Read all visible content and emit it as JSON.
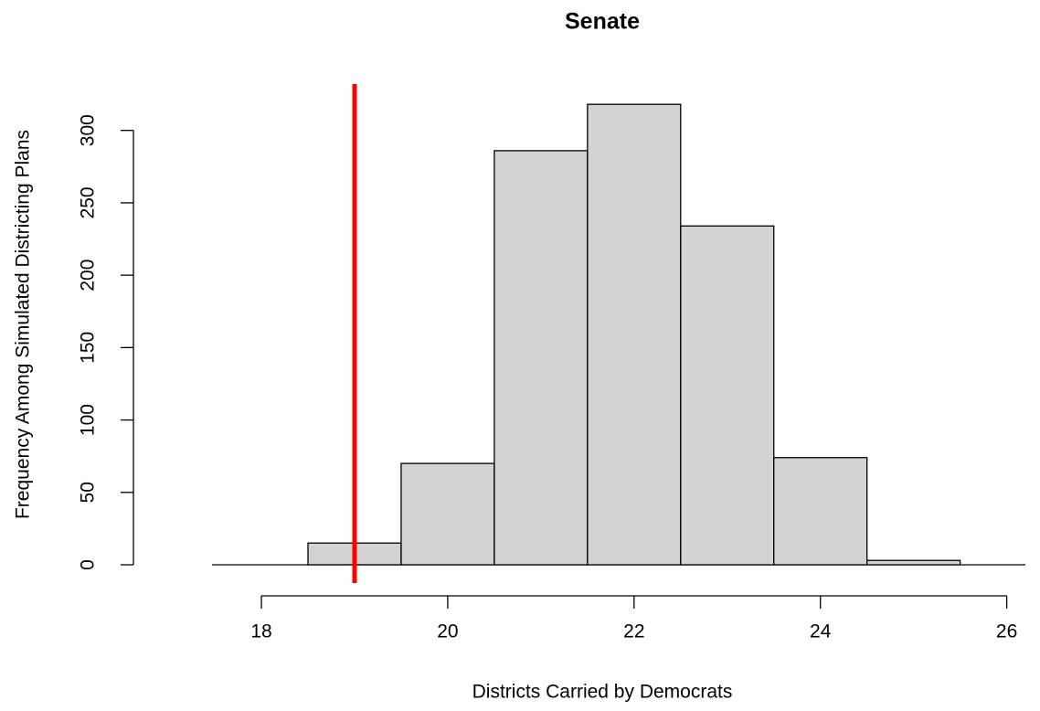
{
  "chart_data": {
    "type": "histogram",
    "title": "Senate",
    "xlabel": "Districts Carried by Democrats",
    "ylabel": "Frequency Among Simulated Districting Plans",
    "bins": [
      18.5,
      19.5,
      20.5,
      21.5,
      22.5,
      23.5,
      24.5,
      25.5
    ],
    "values": [
      15,
      70,
      286,
      318,
      234,
      74,
      3
    ],
    "color": "#d3d3d3",
    "xlim": [
      17.47,
      26.2
    ],
    "xticks": [
      18,
      20,
      22,
      24,
      26
    ],
    "ylim": [
      0,
      332
    ],
    "yticks": [
      0,
      50,
      100,
      150,
      200,
      250,
      300
    ],
    "vline": {
      "x": 19,
      "color": "#ff0000"
    }
  }
}
